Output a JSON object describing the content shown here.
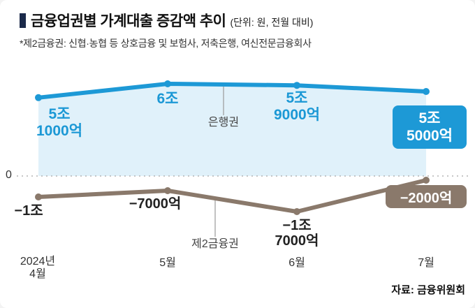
{
  "header": {
    "title": "금융업권별 가계대출 증감액 추이",
    "unit": "(단위: 원, 전월 대비)",
    "footnote": "*제2금융권: 신협·농협 등 상호금융 및 보험사, 저축은행, 여신전문금융회사"
  },
  "chart_data": {
    "type": "line",
    "title": "금융업권별 가계대출 증감액 추이",
    "unit": "원, 전월 대비",
    "categories": [
      "2024년 4월",
      "5월",
      "6월",
      "7월"
    ],
    "x_tick_lines": [
      [
        "2024년",
        "4월"
      ],
      [
        "5월"
      ],
      [
        "6월"
      ],
      [
        "7월"
      ]
    ],
    "zero_label": "0",
    "grid": "zero-dashed-line-only",
    "legend_position": "inline-annotations",
    "series": [
      {
        "name": "은행권",
        "color": "#1d99d6",
        "area_color": "#e0f1fa",
        "values_trillion_won": [
          5.1,
          6.0,
          5.9,
          5.5
        ],
        "labels": [
          "5조 1000억",
          "6조",
          "5조 9000억",
          "5조 5000억"
        ],
        "label_lines": [
          [
            "5조",
            "1000억"
          ],
          [
            "6조"
          ],
          [
            "5조",
            "9000억"
          ],
          [
            "5조",
            "5000억"
          ]
        ]
      },
      {
        "name": "제2금융권",
        "color": "#8a796b",
        "values_trillion_won": [
          -1.0,
          -0.7,
          -1.7,
          -0.2
        ],
        "labels": [
          "−1조",
          "−7000억",
          "−1조 7000억",
          "−2000억"
        ],
        "label_lines": [
          [
            "−1조"
          ],
          [
            "−7000억"
          ],
          [
            "−1조",
            "7000억"
          ],
          [
            "−2000억"
          ]
        ]
      }
    ]
  },
  "source": "자료: 금융위원회"
}
